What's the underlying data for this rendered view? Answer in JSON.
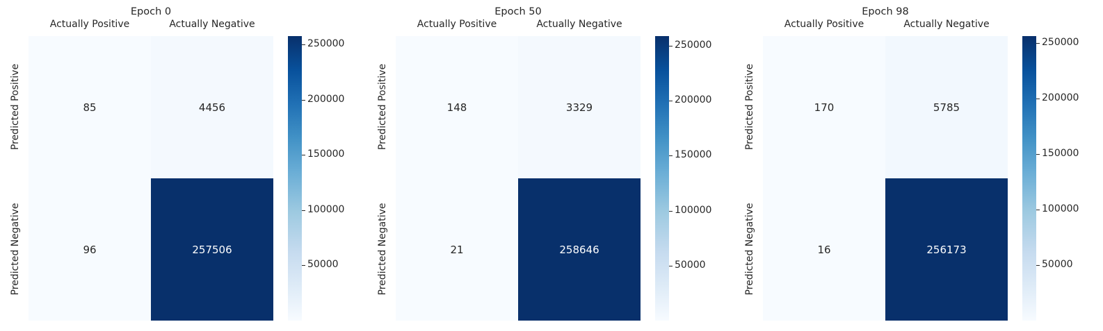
{
  "chart_data": [
    {
      "type": "heatmap",
      "title": "Epoch 0",
      "columns": [
        "Actually Positive",
        "Actually Negative"
      ],
      "rows": [
        "Predicted Positive",
        "Predicted Negative"
      ],
      "values": [
        [
          85,
          4456
        ],
        [
          96,
          257506
        ]
      ],
      "colorbar": {
        "ticks": [
          50000,
          100000,
          150000,
          200000,
          250000
        ],
        "range": [
          85,
          257506
        ]
      }
    },
    {
      "type": "heatmap",
      "title": "Epoch 50",
      "columns": [
        "Actually Positive",
        "Actually Negative"
      ],
      "rows": [
        "Predicted Positive",
        "Predicted Negative"
      ],
      "values": [
        [
          148,
          3329
        ],
        [
          21,
          258646
        ]
      ],
      "colorbar": {
        "ticks": [
          50000,
          100000,
          150000,
          200000,
          250000
        ],
        "range": [
          21,
          258646
        ]
      }
    },
    {
      "type": "heatmap",
      "title": "Epoch 98",
      "columns": [
        "Actually Positive",
        "Actually Negative"
      ],
      "rows": [
        "Predicted Positive",
        "Predicted Negative"
      ],
      "values": [
        [
          170,
          5785
        ],
        [
          16,
          256173
        ]
      ],
      "colorbar": {
        "ticks": [
          50000,
          100000,
          150000,
          200000,
          250000
        ],
        "range": [
          16,
          256173
        ]
      }
    }
  ],
  "colormap": {
    "name": "Blues",
    "low": "#f7fbff",
    "high": "#08306b"
  }
}
